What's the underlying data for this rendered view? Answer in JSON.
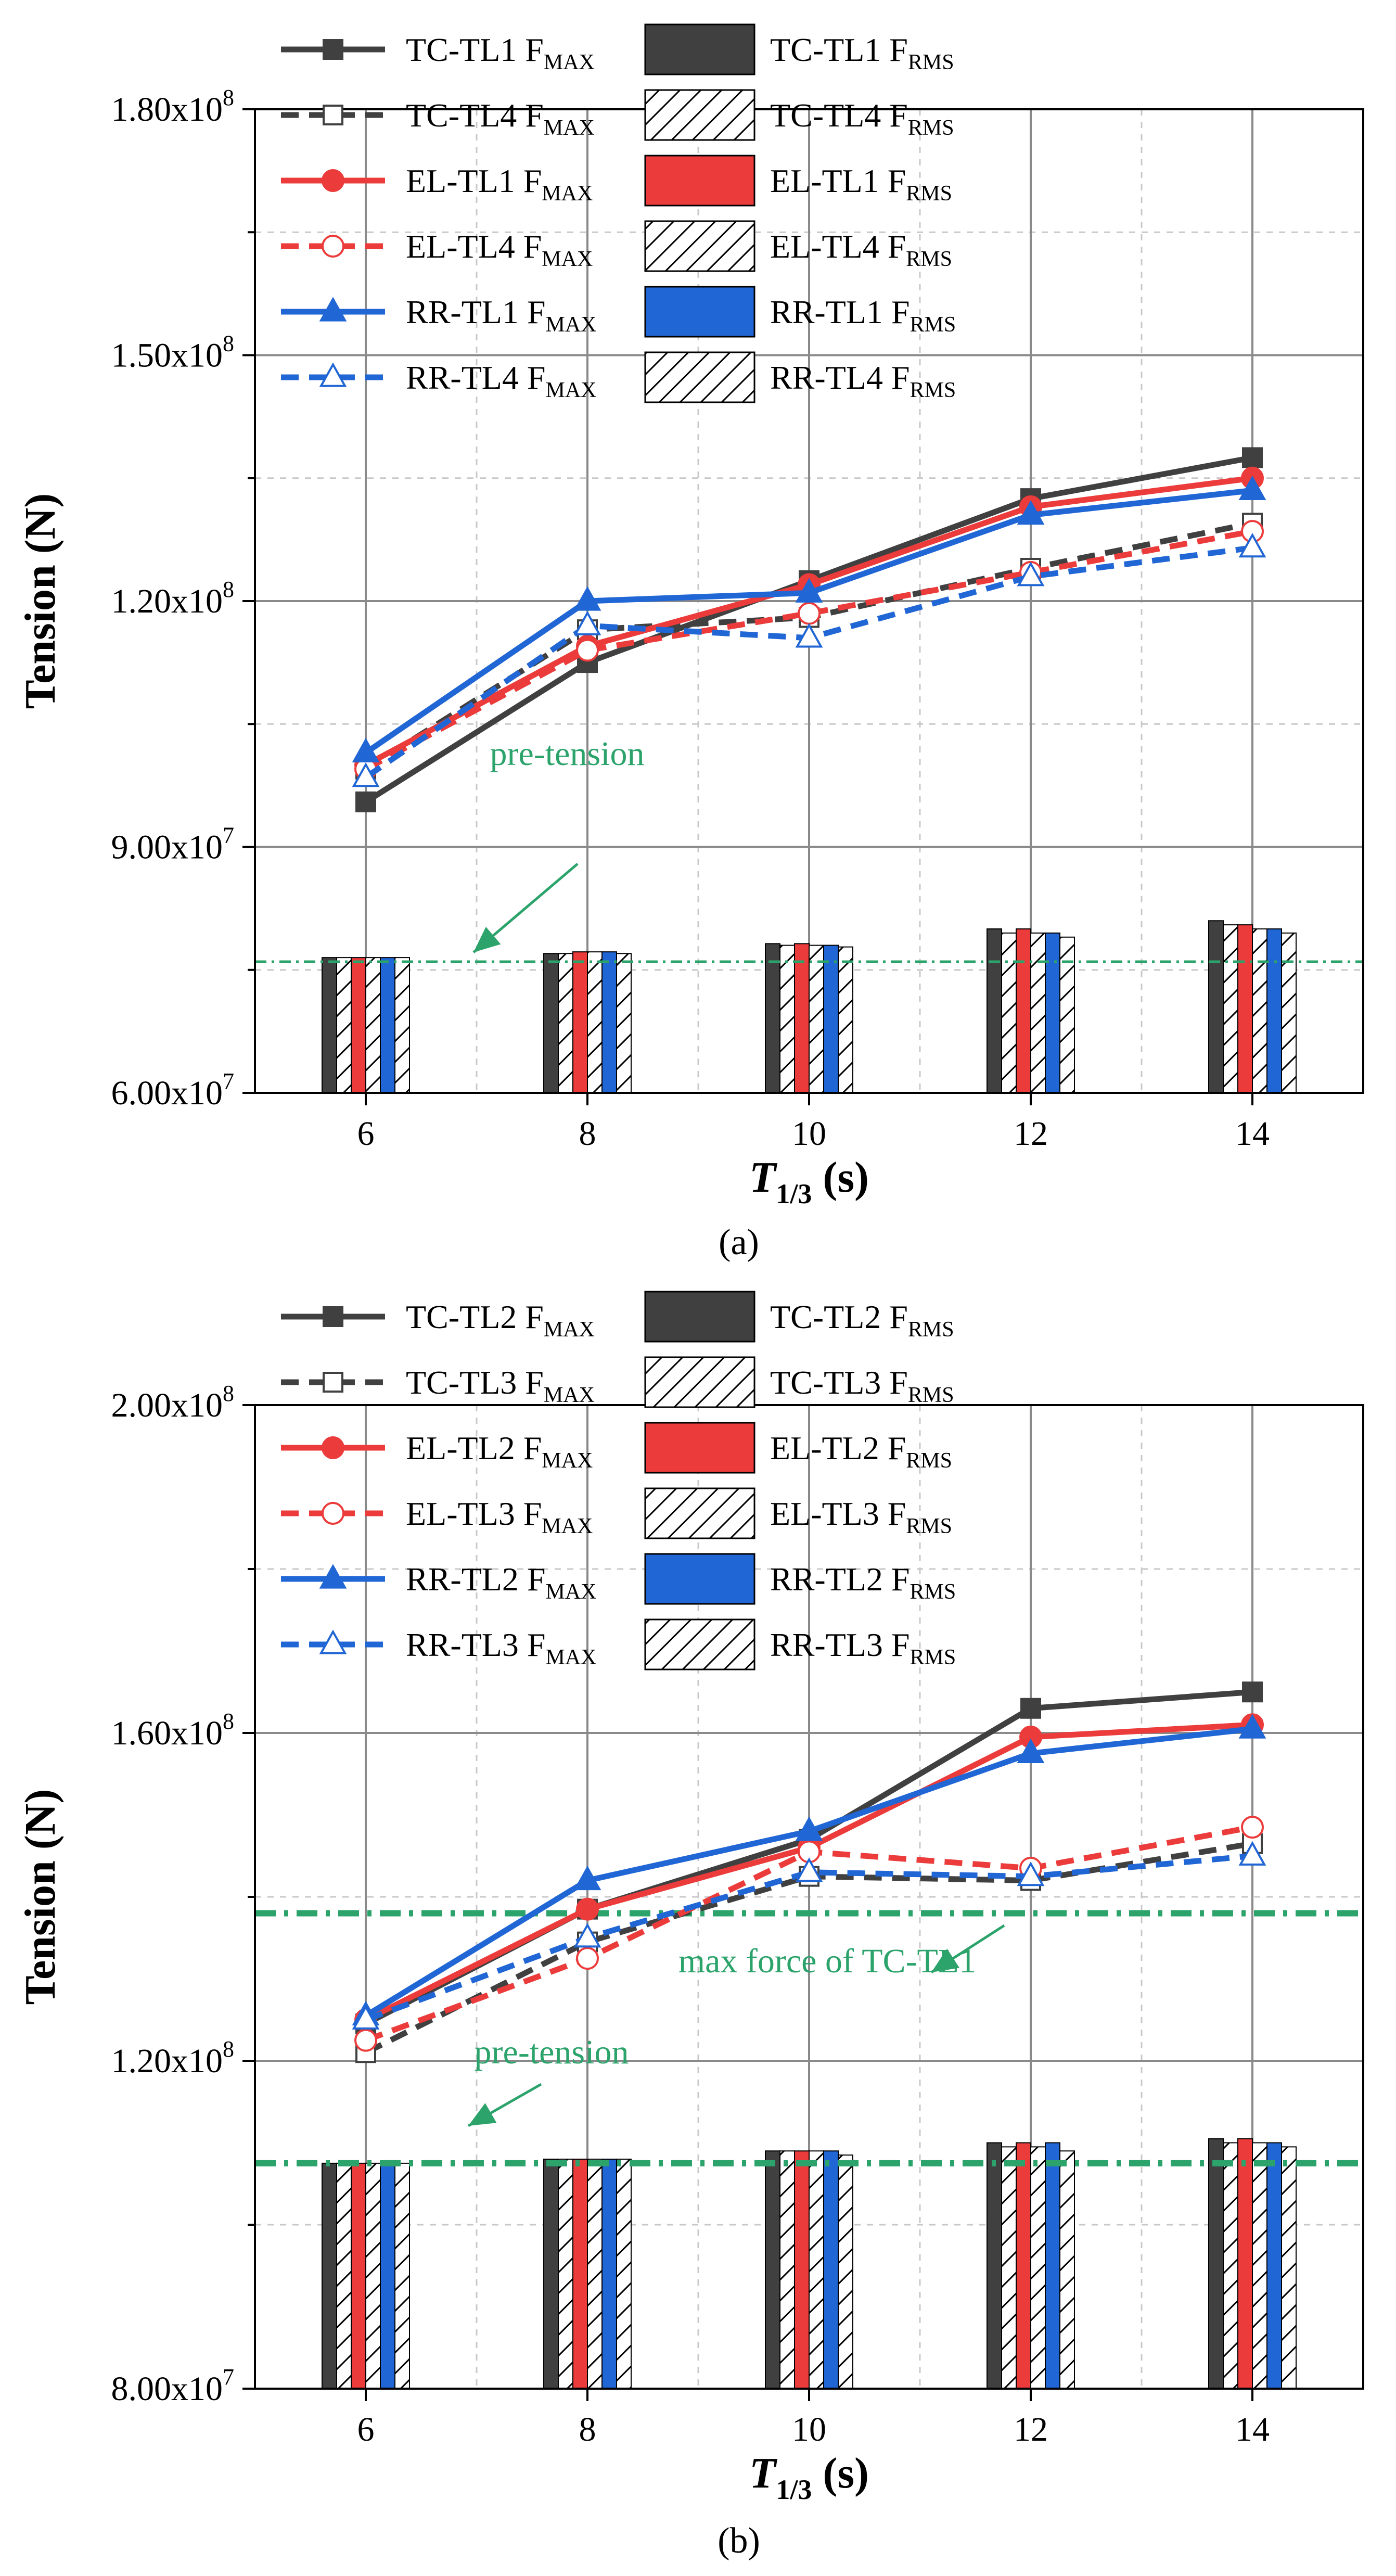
{
  "chart_data": [
    {
      "id": "a",
      "type": "line+bar",
      "panel_label": "(a)",
      "xlabel": "T",
      "xlabel_sub": "1/3",
      "xlabel_unit": " (s)",
      "ylabel": "Tension (N)",
      "categories": [
        6,
        8,
        10,
        12,
        14
      ],
      "ylim": [
        60000000,
        180000000
      ],
      "yticks": [
        {
          "value": 60000000,
          "mant": "6.00x10",
          "exp": "7"
        },
        {
          "value": 90000000,
          "mant": "9.00x10",
          "exp": "7"
        },
        {
          "value": 120000000,
          "mant": "1.20x10",
          "exp": "8"
        },
        {
          "value": 150000000,
          "mant": "1.50x10",
          "exp": "8"
        },
        {
          "value": 180000000,
          "mant": "1.80x10",
          "exp": "8"
        }
      ],
      "minor_grid": [
        75000000,
        105000000,
        135000000,
        165000000
      ],
      "line_series": [
        {
          "name": "TC-TL1",
          "sub": "MAX",
          "color": "#404040",
          "dash": false,
          "marker": "square",
          "filled": true,
          "values": [
            95500000,
            112500000,
            122500000,
            132500000,
            137500000
          ]
        },
        {
          "name": "TC-TL4",
          "sub": "MAX",
          "color": "#404040",
          "dash": true,
          "marker": "square",
          "filled": false,
          "values": [
            99500000,
            116500000,
            118000000,
            124000000,
            129500000
          ]
        },
        {
          "name": "EL-TL1",
          "sub": "MAX",
          "color": "#ec3b3b",
          "dash": false,
          "marker": "circle",
          "filled": true,
          "values": [
            100000000,
            114500000,
            122000000,
            131500000,
            135000000
          ]
        },
        {
          "name": "EL-TL4",
          "sub": "MAX",
          "color": "#ec3b3b",
          "dash": true,
          "marker": "circle",
          "filled": false,
          "values": [
            99500000,
            114000000,
            118500000,
            123500000,
            128500000
          ]
        },
        {
          "name": "RR-TL1",
          "sub": "MAX",
          "color": "#2166d5",
          "dash": false,
          "marker": "triangle",
          "filled": true,
          "values": [
            101500000,
            120000000,
            121000000,
            130500000,
            133500000
          ]
        },
        {
          "name": "RR-TL4",
          "sub": "MAX",
          "color": "#2166d5",
          "dash": true,
          "marker": "triangle",
          "filled": false,
          "values": [
            98500000,
            117000000,
            115500000,
            123000000,
            126500000
          ]
        }
      ],
      "bar_series": [
        {
          "name": "TC-TL1",
          "sub": "RMS",
          "color": "#404040",
          "hatch": false,
          "values": [
            76500000,
            77000000,
            78200000,
            80000000,
            81000000
          ]
        },
        {
          "name": "TC-TL4",
          "sub": "RMS",
          "color": "#404040",
          "hatch": true,
          "values": [
            76500000,
            77000000,
            78000000,
            79500000,
            80500000
          ]
        },
        {
          "name": "EL-TL1",
          "sub": "RMS",
          "color": "#ec3b3b",
          "hatch": false,
          "values": [
            76500000,
            77200000,
            78200000,
            80000000,
            80500000
          ]
        },
        {
          "name": "EL-TL4",
          "sub": "RMS",
          "color": "#404040",
          "hatch": true,
          "values": [
            76500000,
            77200000,
            78000000,
            79500000,
            80000000
          ]
        },
        {
          "name": "RR-TL1",
          "sub": "RMS",
          "color": "#2166d5",
          "hatch": false,
          "values": [
            76500000,
            77200000,
            78000000,
            79500000,
            80000000
          ]
        },
        {
          "name": "RR-TL4",
          "sub": "RMS",
          "color": "#404040",
          "hatch": true,
          "values": [
            76500000,
            77000000,
            77800000,
            79000000,
            79500000
          ]
        }
      ],
      "hlines": [
        {
          "label": "pre-tension",
          "value": 76000000,
          "color": "#2ba36b",
          "thick": false
        }
      ],
      "legend": [
        {
          "line": "TC-TL1",
          "bar": "TC-TL1"
        },
        {
          "line": "TC-TL4",
          "bar": "TC-TL4"
        },
        {
          "line": "EL-TL1",
          "bar": "EL-TL1"
        },
        {
          "line": "EL-TL4",
          "bar": "EL-TL4"
        },
        {
          "line": "RR-TL1",
          "bar": "RR-TL1"
        },
        {
          "line": "RR-TL4",
          "bar": "RR-TL4"
        }
      ]
    },
    {
      "id": "b",
      "type": "line+bar",
      "panel_label": "(b)",
      "xlabel": "T",
      "xlabel_sub": "1/3",
      "xlabel_unit": " (s)",
      "ylabel": "Tension (N)",
      "categories": [
        6,
        8,
        10,
        12,
        14
      ],
      "ylim": [
        80000000,
        200000000
      ],
      "yticks": [
        {
          "value": 80000000,
          "mant": "8.00x10",
          "exp": "7"
        },
        {
          "value": 120000000,
          "mant": "1.20x10",
          "exp": "8"
        },
        {
          "value": 160000000,
          "mant": "1.60x10",
          "exp": "8"
        },
        {
          "value": 200000000,
          "mant": "2.00x10",
          "exp": "8"
        }
      ],
      "minor_grid": [
        100000000,
        140000000,
        180000000
      ],
      "line_series": [
        {
          "name": "TC-TL2",
          "sub": "MAX",
          "color": "#404040",
          "dash": false,
          "marker": "square",
          "filled": true,
          "values": [
            124500000,
            138500000,
            147000000,
            163000000,
            165000000
          ]
        },
        {
          "name": "TC-TL3",
          "sub": "MAX",
          "color": "#404040",
          "dash": true,
          "marker": "square",
          "filled": false,
          "values": [
            121000000,
            134500000,
            142500000,
            142000000,
            146500000
          ]
        },
        {
          "name": "EL-TL2",
          "sub": "MAX",
          "color": "#ec3b3b",
          "dash": false,
          "marker": "circle",
          "filled": true,
          "values": [
            125000000,
            138500000,
            146000000,
            159500000,
            161000000
          ]
        },
        {
          "name": "EL-TL3",
          "sub": "MAX",
          "color": "#ec3b3b",
          "dash": true,
          "marker": "circle",
          "filled": false,
          "values": [
            122500000,
            132500000,
            145500000,
            143500000,
            148500000
          ]
        },
        {
          "name": "RR-TL2",
          "sub": "MAX",
          "color": "#2166d5",
          "dash": false,
          "marker": "triangle",
          "filled": true,
          "values": [
            125500000,
            142000000,
            148000000,
            157500000,
            160500000
          ]
        },
        {
          "name": "RR-TL3",
          "sub": "MAX",
          "color": "#2166d5",
          "dash": true,
          "marker": "triangle",
          "filled": false,
          "values": [
            125000000,
            135000000,
            143000000,
            142500000,
            145000000
          ]
        }
      ],
      "bar_series": [
        {
          "name": "TC-TL2",
          "sub": "RMS",
          "color": "#404040",
          "hatch": false,
          "values": [
            107500000,
            108000000,
            109000000,
            110000000,
            110500000
          ]
        },
        {
          "name": "TC-TL3",
          "sub": "RMS",
          "color": "#404040",
          "hatch": true,
          "values": [
            107500000,
            108000000,
            109000000,
            109500000,
            110000000
          ]
        },
        {
          "name": "EL-TL2",
          "sub": "RMS",
          "color": "#ec3b3b",
          "hatch": false,
          "values": [
            107500000,
            108000000,
            109000000,
            110000000,
            110500000
          ]
        },
        {
          "name": "EL-TL3",
          "sub": "RMS",
          "color": "#404040",
          "hatch": true,
          "values": [
            107500000,
            108000000,
            109000000,
            109500000,
            110000000
          ]
        },
        {
          "name": "RR-TL2",
          "sub": "RMS",
          "color": "#2166d5",
          "hatch": false,
          "values": [
            107500000,
            108000000,
            109000000,
            110000000,
            110000000
          ]
        },
        {
          "name": "RR-TL3",
          "sub": "RMS",
          "color": "#404040",
          "hatch": true,
          "values": [
            107500000,
            108000000,
            108500000,
            109000000,
            109500000
          ]
        }
      ],
      "hlines": [
        {
          "label": "max force of TC-TL1",
          "value": 138000000,
          "color": "#2ba36b",
          "thick": true
        },
        {
          "label": "pre-tension",
          "value": 107500000,
          "color": "#2ba36b",
          "thick": true
        }
      ],
      "legend": [
        {
          "line": "TC-TL2",
          "bar": "TC-TL2"
        },
        {
          "line": "TC-TL3",
          "bar": "TC-TL3"
        },
        {
          "line": "EL-TL2",
          "bar": "EL-TL2"
        },
        {
          "line": "EL-TL3",
          "bar": "EL-TL3"
        },
        {
          "line": "RR-TL2",
          "bar": "RR-TL2"
        },
        {
          "line": "RR-TL3",
          "bar": "RR-TL3"
        }
      ]
    }
  ]
}
